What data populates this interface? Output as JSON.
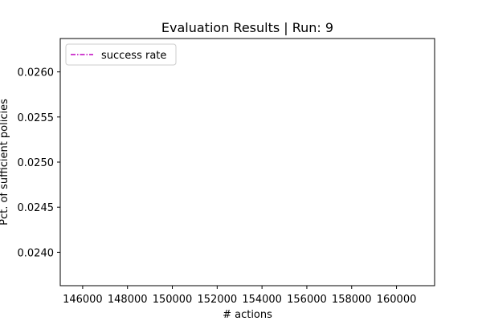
{
  "chart_data": {
    "type": "line",
    "title": "Evaluation Results | Run: 9",
    "xlabel": "# actions",
    "ylabel": "Pct. of sufficient policies",
    "xlim": [
      145000,
      161700
    ],
    "ylim": [
      0.02363,
      0.02637
    ],
    "xticks": [
      146000,
      148000,
      150000,
      152000,
      154000,
      156000,
      158000,
      160000
    ],
    "xtick_labels": [
      "146000",
      "148000",
      "150000",
      "152000",
      "154000",
      "156000",
      "158000",
      "160000"
    ],
    "yticks": [
      0.024,
      0.0245,
      0.025,
      0.0255,
      0.026
    ],
    "ytick_labels": [
      "0.0240",
      "0.0245",
      "0.0250",
      "0.0255",
      "0.0260"
    ],
    "grid": false,
    "legend_position": "upper-left",
    "series": [
      {
        "name": "success rate",
        "color": "#bf00bf",
        "linestyle": "dashdot",
        "x": [],
        "y": []
      }
    ]
  }
}
